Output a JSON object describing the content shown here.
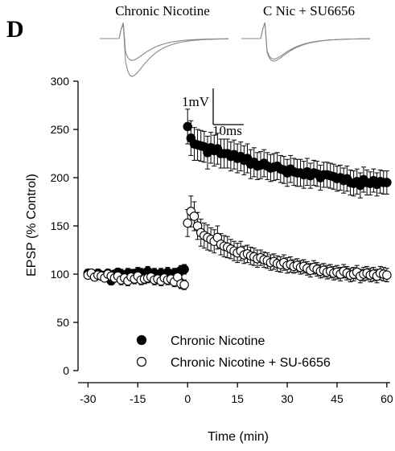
{
  "panel_label": "D",
  "insets": [
    {
      "title": "Chronic Nicotine"
    },
    {
      "title": "C Nic + SU6656"
    }
  ],
  "scale_bar": {
    "amplitude": "1mV",
    "time": "10ms"
  },
  "chart_data": {
    "type": "scatter",
    "xlabel": "Time (min)",
    "ylabel": "EPSP (% Control)",
    "xlim": [
      -33,
      61
    ],
    "ylim": [
      0,
      300
    ],
    "xticks": [
      -30,
      -15,
      0,
      15,
      30,
      45,
      60
    ],
    "yticks": [
      0,
      50,
      100,
      150,
      200,
      250,
      300
    ],
    "xtick_labels": [
      "-30",
      "-15",
      "0",
      "15",
      "30",
      "45",
      "60"
    ],
    "ytick_labels": [
      "0",
      "50",
      "100",
      "150",
      "200",
      "250",
      "300"
    ],
    "grid": false,
    "legend_position": "bottom-left",
    "series": [
      {
        "name": "Chronic Nicotine",
        "marker": "filled-circle",
        "x": [
          -30,
          -29,
          -28,
          -27,
          -26,
          -25,
          -24,
          -23,
          -22,
          -21,
          -20,
          -19,
          -18,
          -17,
          -16,
          -15,
          -14,
          -13,
          -12,
          -11,
          -10,
          -9,
          -8,
          -7,
          -6,
          -5,
          -4,
          -3,
          -2,
          -1,
          0,
          1,
          2,
          3,
          4,
          5,
          6,
          7,
          8,
          9,
          10,
          11,
          12,
          13,
          14,
          15,
          16,
          17,
          18,
          19,
          20,
          21,
          22,
          23,
          24,
          25,
          26,
          27,
          28,
          29,
          30,
          31,
          32,
          33,
          34,
          35,
          36,
          37,
          38,
          39,
          40,
          41,
          42,
          43,
          44,
          45,
          46,
          47,
          48,
          49,
          50,
          51,
          52,
          53,
          54,
          55,
          56,
          57,
          58,
          59,
          60
        ],
        "y": [
          101,
          100,
          98,
          101,
          99,
          97,
          101,
          93,
          100,
          102,
          100,
          98,
          101,
          100,
          100,
          102,
          101,
          98,
          103,
          99,
          101,
          99,
          101,
          97,
          102,
          99,
          101,
          101,
          104,
          105,
          253,
          241,
          235,
          234,
          233,
          232,
          226,
          231,
          228,
          230,
          225,
          225,
          225,
          222,
          224,
          220,
          222,
          218,
          220,
          214,
          216,
          212,
          213,
          215,
          212,
          210,
          211,
          212,
          209,
          208,
          205,
          209,
          206,
          205,
          205,
          203,
          206,
          202,
          205,
          204,
          200,
          203,
          203,
          202,
          201,
          199,
          200,
          197,
          199,
          195,
          194,
          196,
          192,
          198,
          195,
          194,
          197,
          193,
          196,
          195,
          195
        ],
        "error": [
          4,
          4,
          4,
          4,
          4,
          4,
          4,
          4,
          4,
          4,
          5,
          5,
          5,
          5,
          5,
          5,
          5,
          5,
          5,
          5,
          5,
          5,
          5,
          5,
          5,
          5,
          5,
          5,
          5,
          5,
          18,
          18,
          17,
          16,
          16,
          16,
          17,
          16,
          16,
          16,
          15,
          15,
          15,
          15,
          15,
          15,
          15,
          15,
          15,
          15,
          15,
          14,
          14,
          14,
          14,
          14,
          14,
          14,
          14,
          14,
          14,
          14,
          14,
          14,
          14,
          14,
          14,
          13,
          13,
          13,
          13,
          13,
          13,
          13,
          13,
          13,
          13,
          13,
          13,
          13,
          13,
          13,
          13,
          13,
          13,
          12,
          12,
          12,
          12,
          12,
          12
        ]
      },
      {
        "name": "Chronic Nicotine + SU-6656",
        "marker": "open-circle",
        "x": [
          -30,
          -29,
          -28,
          -27,
          -26,
          -25,
          -24,
          -23,
          -22,
          -21,
          -20,
          -19,
          -18,
          -17,
          -16,
          -15,
          -14,
          -13,
          -12,
          -11,
          -10,
          -9,
          -8,
          -7,
          -6,
          -5,
          -4,
          -3,
          -2,
          -1,
          0,
          1,
          2,
          3,
          4,
          5,
          6,
          7,
          8,
          9,
          10,
          11,
          12,
          13,
          14,
          15,
          16,
          17,
          18,
          19,
          20,
          21,
          22,
          23,
          24,
          25,
          26,
          27,
          28,
          29,
          30,
          31,
          32,
          33,
          34,
          35,
          36,
          37,
          38,
          39,
          40,
          41,
          42,
          43,
          44,
          45,
          46,
          47,
          48,
          49,
          50,
          51,
          52,
          53,
          54,
          55,
          56,
          57,
          58,
          59,
          60
        ],
        "y": [
          99,
          101,
          97,
          99,
          98,
          96,
          100,
          98,
          96,
          98,
          94,
          96,
          93,
          97,
          95,
          98,
          94,
          95,
          96,
          97,
          94,
          95,
          93,
          96,
          94,
          95,
          92,
          97,
          90,
          89,
          153,
          165,
          160,
          150,
          143,
          140,
          138,
          136,
          134,
          138,
          131,
          129,
          128,
          126,
          124,
          122,
          124,
          120,
          121,
          119,
          118,
          116,
          117,
          115,
          114,
          112,
          113,
          111,
          110,
          112,
          109,
          110,
          108,
          109,
          107,
          108,
          106,
          104,
          107,
          105,
          103,
          104,
          102,
          103,
          101,
          102,
          100,
          103,
          101,
          99,
          100,
          102,
          98,
          100,
          101,
          99,
          100,
          98,
          101,
          100,
          99
        ],
        "error": [
          4,
          4,
          4,
          4,
          4,
          4,
          4,
          4,
          4,
          4,
          5,
          5,
          5,
          5,
          5,
          5,
          5,
          5,
          5,
          5,
          5,
          5,
          5,
          5,
          5,
          5,
          5,
          5,
          5,
          5,
          14,
          16,
          15,
          14,
          14,
          13,
          13,
          12,
          12,
          12,
          11,
          11,
          11,
          10,
          10,
          10,
          10,
          9,
          9,
          9,
          9,
          9,
          8,
          8,
          8,
          8,
          8,
          8,
          8,
          8,
          8,
          8,
          7,
          7,
          7,
          7,
          7,
          7,
          7,
          7,
          7,
          7,
          7,
          7,
          7,
          7,
          7,
          7,
          7,
          7,
          7,
          7,
          7,
          7,
          7,
          7,
          7,
          7,
          7,
          7,
          7
        ]
      }
    ]
  }
}
